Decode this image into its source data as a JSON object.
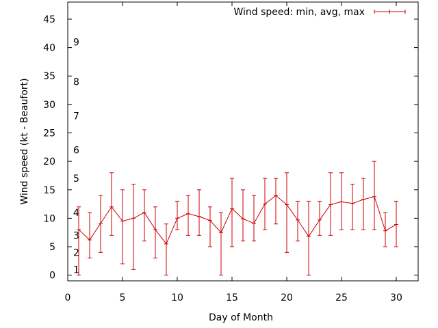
{
  "chart_data": {
    "type": "line",
    "title": "",
    "xlabel": "Day of Month",
    "ylabel": "Wind speed (kt - Beaufort)",
    "xlim": [
      0,
      32
    ],
    "ylim": [
      -1,
      48
    ],
    "x_ticks": [
      0,
      5,
      10,
      15,
      20,
      25,
      30
    ],
    "y_ticks": [
      0,
      5,
      10,
      15,
      20,
      25,
      30,
      35,
      40,
      45
    ],
    "grid": false,
    "legend_position": "top-right",
    "beaufort_labels": [
      {
        "label": "1",
        "value": 1
      },
      {
        "label": "2",
        "value": 4
      },
      {
        "label": "3",
        "value": 7
      },
      {
        "label": "4",
        "value": 11
      },
      {
        "label": "5",
        "value": 17
      },
      {
        "label": "6",
        "value": 22
      },
      {
        "label": "7",
        "value": 28
      },
      {
        "label": "8",
        "value": 34
      },
      {
        "label": "9",
        "value": 41
      }
    ],
    "series": [
      {
        "name": "Wind speed: min, avg, max",
        "color": "#cc0000",
        "x": [
          1,
          2,
          3,
          4,
          5,
          6,
          7,
          8,
          9,
          10,
          11,
          12,
          13,
          14,
          15,
          16,
          17,
          18,
          19,
          20,
          21,
          22,
          23,
          24,
          25,
          26,
          27,
          28,
          29,
          30
        ],
        "avg": [
          8,
          6.2,
          9.1,
          12,
          9.5,
          10,
          11,
          8,
          5.5,
          10,
          10.8,
          10.3,
          9.6,
          7.5,
          11.7,
          9.9,
          9.1,
          12.5,
          14,
          12.4,
          9.7,
          6.8,
          9.7,
          12.4,
          12.9,
          12.6,
          13.3,
          13.8,
          7.8,
          8.9
        ],
        "min": [
          0,
          3,
          4,
          7,
          2,
          1,
          6,
          3,
          0,
          8,
          7,
          7,
          5,
          0,
          5,
          6,
          6,
          8,
          9,
          4,
          6,
          0,
          7,
          7,
          8,
          8,
          8,
          8,
          5,
          5
        ],
        "max": [
          12,
          11,
          14,
          18,
          15,
          16,
          15,
          12,
          9,
          13,
          14,
          15,
          12,
          11,
          17,
          15,
          14,
          17,
          17,
          18,
          13,
          13,
          13,
          18,
          18,
          16,
          17,
          20,
          11,
          13
        ]
      }
    ]
  }
}
